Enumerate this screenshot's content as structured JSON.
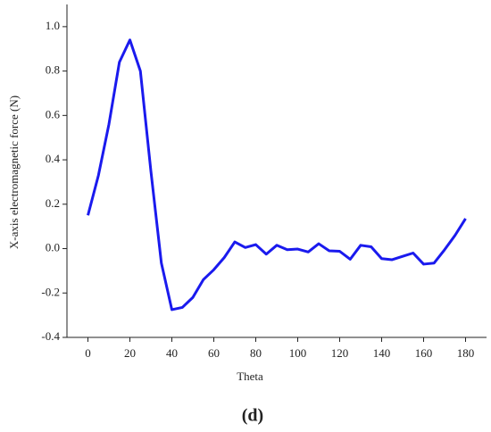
{
  "chart_data": {
    "type": "line",
    "x_label": "Theta",
    "y_label": "X-axis electromagnetic force  (N)",
    "caption": "(d)",
    "x": [
      0,
      5,
      10,
      15,
      20,
      25,
      30,
      35,
      40,
      45,
      50,
      55,
      60,
      65,
      70,
      75,
      80,
      85,
      90,
      95,
      100,
      105,
      110,
      115,
      120,
      125,
      130,
      135,
      140,
      145,
      150,
      155,
      160,
      165,
      170,
      175,
      180
    ],
    "series": [
      {
        "color": "#1a1aee",
        "values": [
          0.15,
          0.33,
          0.56,
          0.84,
          0.94,
          0.8,
          0.35,
          -0.065,
          -0.275,
          -0.265,
          -0.22,
          -0.14,
          -0.095,
          -0.04,
          0.03,
          0.005,
          0.018,
          -0.025,
          0.015,
          -0.005,
          -0.002,
          -0.015,
          0.022,
          -0.01,
          -0.012,
          -0.048,
          0.015,
          0.008,
          -0.045,
          -0.05,
          -0.035,
          -0.02,
          -0.07,
          -0.065,
          -0.005,
          0.06,
          0.135
        ]
      }
    ],
    "xlim": [
      -10,
      190
    ],
    "ylim": [
      -0.4,
      1.1
    ],
    "xticks": [
      0,
      20,
      40,
      60,
      80,
      100,
      120,
      140,
      160,
      180
    ],
    "yticks": [
      {
        "value": 1.0,
        "label": "1.0"
      },
      0.8,
      0.6,
      0.4,
      0.2,
      {
        "value": 0.0,
        "label": "0.0"
      },
      -0.2,
      -0.4
    ]
  }
}
